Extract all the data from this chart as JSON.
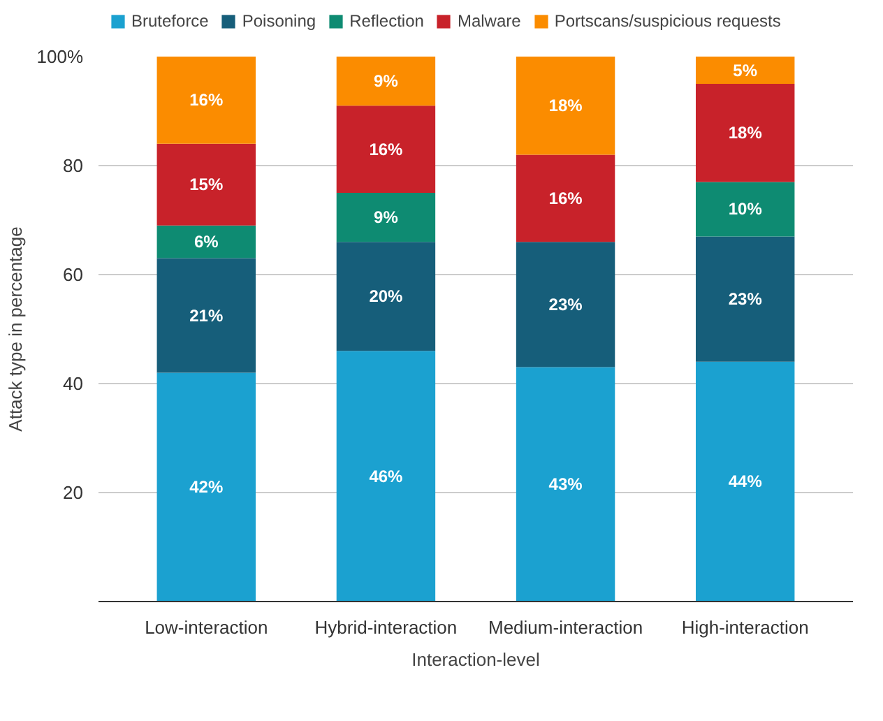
{
  "chart_data": {
    "type": "bar",
    "stacked": true,
    "xlabel": "Interaction-level",
    "ylabel": "Attack type in percentage",
    "categories": [
      "Low-interaction",
      "Hybrid-interaction",
      "Medium-interaction",
      "High-interaction"
    ],
    "series": [
      {
        "name": "Bruteforce",
        "color": "#1ba1d0",
        "values": [
          42,
          46,
          43,
          44
        ],
        "value_labels": [
          "42%",
          "46%",
          "43%",
          "44%"
        ]
      },
      {
        "name": "Poisoning",
        "color": "#165e7a",
        "values": [
          21,
          20,
          23,
          23
        ],
        "value_labels": [
          "21%",
          "20%",
          "23%",
          "23%"
        ]
      },
      {
        "name": "Reflection",
        "color": "#0e8b72",
        "values": [
          6,
          9,
          0,
          10
        ],
        "value_labels": [
          "6%",
          "9%",
          null,
          "10%"
        ]
      },
      {
        "name": "Malware",
        "color": "#c8222a",
        "values": [
          15,
          16,
          16,
          18
        ],
        "value_labels": [
          "15%",
          "16%",
          "16%",
          "18%"
        ]
      },
      {
        "name": "Portscans/suspicious requests",
        "color": "#fb8c00",
        "values": [
          16,
          9,
          18,
          5
        ],
        "value_labels": [
          "16%",
          "9%",
          "18%",
          "5%"
        ]
      }
    ],
    "ylim": [
      0,
      100
    ],
    "yticks": [
      20,
      40,
      60,
      80,
      {
        "value": 100,
        "label": "100%"
      }
    ],
    "grid": "y",
    "legend": "top"
  }
}
